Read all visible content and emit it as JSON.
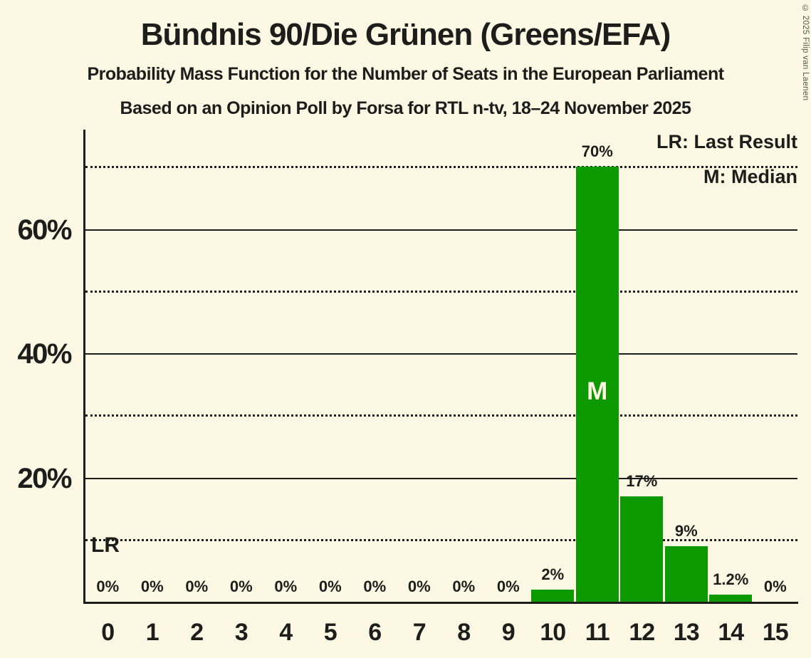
{
  "title": "Bündnis 90/Die Grünen (Greens/EFA)",
  "subtitle": "Probability Mass Function for the Number of Seats in the European Parliament",
  "source_line": "Based on an Opinion Poll by Forsa for RTL n-tv, 18–24 November 2025",
  "copyright": "© 2025 Filip van Laenen",
  "legend": {
    "last_result": "LR: Last Result",
    "median": "M: Median"
  },
  "annotations": {
    "last_result": "LR",
    "median": "M"
  },
  "colors": {
    "background": "#FDF8E3",
    "bar": "#0D9A00",
    "text": "#1D1D1B",
    "median_letter": "#FDF8E3",
    "copyright_text": "#57564E"
  },
  "chart_data": {
    "type": "bar",
    "title": "Bündnis 90/Die Grünen (Greens/EFA)",
    "categories": [
      "0",
      "1",
      "2",
      "3",
      "4",
      "5",
      "6",
      "7",
      "8",
      "9",
      "10",
      "11",
      "12",
      "13",
      "14",
      "15"
    ],
    "values": [
      0,
      0,
      0,
      0,
      0,
      0,
      0,
      0,
      0,
      0,
      2,
      70,
      17,
      9,
      1.2,
      0
    ],
    "bar_labels": [
      "0%",
      "0%",
      "0%",
      "0%",
      "0%",
      "0%",
      "0%",
      "0%",
      "0%",
      "0%",
      "2%",
      "70%",
      "17%",
      "9%",
      "1.2%",
      "0%"
    ],
    "median_category": "11",
    "ylim": [
      0,
      76
    ],
    "yticks": [
      {
        "value": 20,
        "label": "20%"
      },
      {
        "value": 40,
        "label": "40%"
      },
      {
        "value": 60,
        "label": "60%"
      }
    ],
    "gridlines": [
      {
        "value": 10,
        "style": "dotted"
      },
      {
        "value": 20,
        "style": "solid"
      },
      {
        "value": 30,
        "style": "dotted"
      },
      {
        "value": 40,
        "style": "solid"
      },
      {
        "value": 50,
        "style": "dotted"
      },
      {
        "value": 60,
        "style": "solid"
      },
      {
        "value": 70,
        "style": "dotted"
      }
    ],
    "grid": "horizontal",
    "legend_position": "top-right",
    "last_result_annotation_y_pct": 10
  }
}
